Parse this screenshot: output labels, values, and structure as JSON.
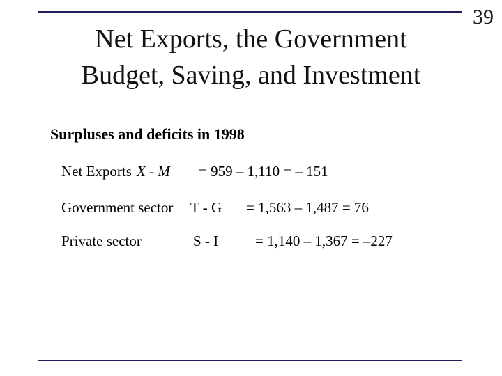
{
  "slide": {
    "number": "39",
    "title_line1": "Net Exports, the Government",
    "title_line2": "Budget, Saving, and Investment",
    "subtitle": "Surpluses and deficits in 1998",
    "rows": [
      {
        "label": "Net Exports",
        "expr": "X - M",
        "equation": "= 959 – 1,110 = – 151"
      },
      {
        "label": "Government sector",
        "expr": "T - G",
        "equation": "= 1,563 – 1,487 = 76"
      },
      {
        "label": "Private sector",
        "expr": "S - I",
        "equation": "= 1,140 – 1,367 = –227"
      }
    ]
  },
  "colors": {
    "rule": "#1f1f5e",
    "text": "#000000"
  }
}
